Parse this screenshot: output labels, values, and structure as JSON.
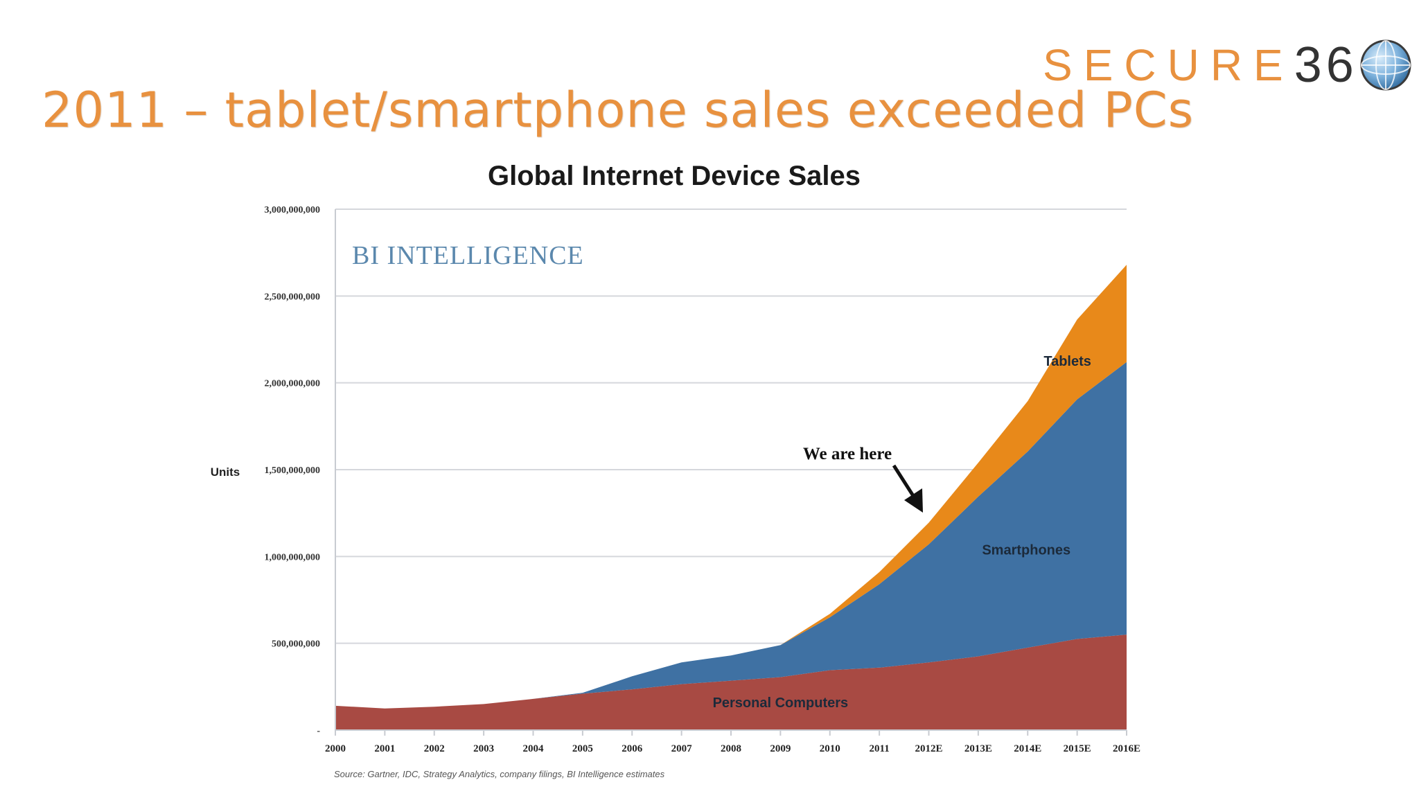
{
  "slide": {
    "title": "2011 – tablet/smartphone sales exceeded PCs"
  },
  "logo": {
    "text_secure": "SECURE",
    "text_360": "36",
    "icon": "globe-icon",
    "colors": {
      "secure": "#e8913f",
      "digits": "#333333"
    }
  },
  "chart_data": {
    "type": "area",
    "stacked": true,
    "title": "Global Internet Device Sales",
    "watermark": "BI INTELLIGENCE",
    "xlabel": "",
    "ylabel": "Units",
    "ylim": [
      0,
      3000000000
    ],
    "yticks": [
      0,
      500000000,
      1000000000,
      1500000000,
      2000000000,
      2500000000,
      3000000000
    ],
    "ytick_labels": [
      "-",
      "500,000,000",
      "1,000,000,000",
      "1,500,000,000",
      "2,000,000,000",
      "2,500,000,000",
      "3,000,000,000"
    ],
    "grid": true,
    "categories": [
      "2000",
      "2001",
      "2002",
      "2003",
      "2004",
      "2005",
      "2006",
      "2007",
      "2008",
      "2009",
      "2010",
      "2011",
      "2012E",
      "2013E",
      "2014E",
      "2015E",
      "2016E"
    ],
    "series": [
      {
        "name": "Personal Computers",
        "color": "#a84a43",
        "values": [
          140000000,
          125000000,
          135000000,
          150000000,
          180000000,
          210000000,
          235000000,
          265000000,
          285000000,
          305000000,
          345000000,
          360000000,
          390000000,
          425000000,
          475000000,
          525000000,
          550000000
        ]
      },
      {
        "name": "Smartphones",
        "color": "#3f71a3",
        "values": [
          0,
          0,
          0,
          0,
          0,
          5000000,
          75000000,
          125000000,
          145000000,
          185000000,
          305000000,
          480000000,
          680000000,
          920000000,
          1130000000,
          1380000000,
          1570000000
        ]
      },
      {
        "name": "Tablets",
        "color": "#e8891a",
        "values": [
          0,
          0,
          0,
          0,
          0,
          0,
          0,
          0,
          0,
          0,
          20000000,
          70000000,
          125000000,
          195000000,
          290000000,
          460000000,
          560000000
        ]
      }
    ],
    "annotations": [
      {
        "text": "We are here",
        "points_to": "2012E"
      }
    ],
    "source": "Source: Gartner, IDC, Strategy Analytics, company filings, BI Intelligence estimates"
  }
}
